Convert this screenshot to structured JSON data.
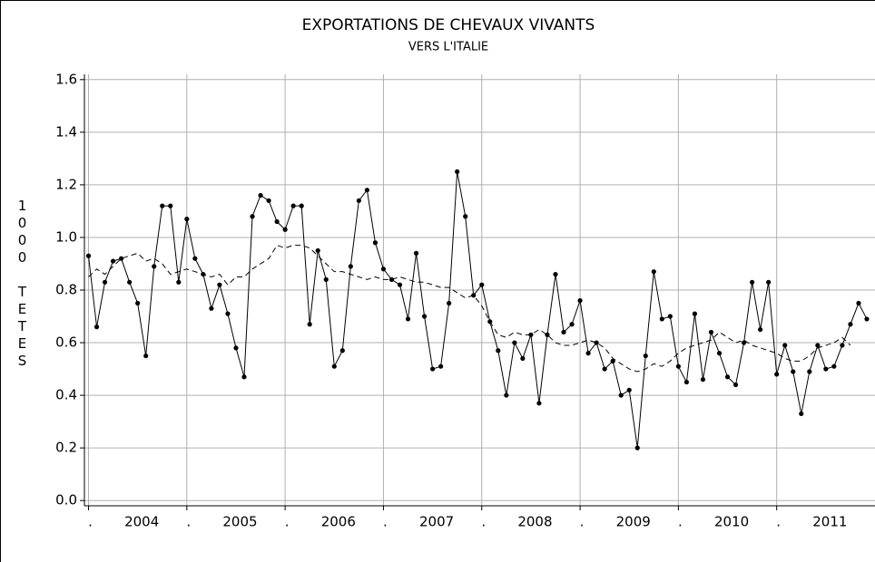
{
  "chart_data": {
    "type": "line",
    "title": "EXPORTATIONS DE CHEVAUX VIVANTS",
    "subtitle": "VERS L'ITALIE",
    "ylabel": "1000 TETES",
    "x": [
      0,
      1,
      2,
      3,
      4,
      5,
      6,
      7,
      8,
      9,
      10,
      11,
      12,
      13,
      14,
      15,
      16,
      17,
      18,
      19,
      20,
      21,
      22,
      23,
      24,
      25,
      26,
      27,
      28,
      29,
      30,
      31,
      32,
      33,
      34,
      35,
      36,
      37,
      38,
      39,
      40,
      41,
      42,
      43,
      44,
      45,
      46,
      47,
      48,
      49,
      50,
      51,
      52,
      53,
      54,
      55,
      56,
      57,
      58,
      59,
      60,
      61,
      62,
      63,
      64,
      65,
      66,
      67,
      68,
      69,
      70,
      71,
      72,
      73,
      74,
      75,
      76,
      77,
      78,
      79,
      80,
      81,
      82,
      83,
      84,
      85,
      86,
      87,
      88,
      89,
      90,
      91,
      92,
      93,
      94,
      95
    ],
    "series": [
      {
        "color": "#000000",
        "style": "solid",
        "markers": true,
        "values": [
          0.93,
          0.66,
          0.83,
          0.91,
          0.92,
          0.83,
          0.75,
          0.55,
          0.89,
          1.12,
          1.12,
          0.83,
          1.07,
          0.92,
          0.86,
          0.73,
          0.82,
          0.71,
          0.58,
          0.47,
          1.08,
          1.16,
          1.14,
          1.06,
          1.03,
          1.12,
          1.12,
          0.67,
          0.95,
          0.84,
          0.51,
          0.57,
          0.89,
          1.14,
          1.18,
          0.98,
          0.88,
          0.84,
          0.82,
          0.69,
          0.94,
          0.7,
          0.5,
          0.51,
          0.75,
          1.25,
          1.08,
          0.78,
          0.82,
          0.68,
          0.57,
          0.4,
          0.6,
          0.54,
          0.63,
          0.37,
          0.63,
          0.86,
          0.64,
          0.67,
          0.76,
          0.56,
          0.6,
          0.5,
          0.53,
          0.4,
          0.42,
          0.2,
          0.55,
          0.87,
          0.69,
          0.7,
          0.51,
          0.45,
          0.71,
          0.46,
          0.64,
          0.56,
          0.47,
          0.44,
          0.6,
          0.83,
          0.65,
          0.83,
          0.48,
          0.59,
          0.49,
          0.33,
          0.49,
          0.59,
          0.5,
          0.51,
          0.59,
          0.67,
          0.75,
          0.69
        ]
      },
      {
        "color": "#000000",
        "style": "dashed",
        "markers": false,
        "values": [
          0.85,
          0.88,
          0.86,
          0.89,
          0.92,
          0.93,
          0.94,
          0.91,
          0.92,
          0.9,
          0.86,
          0.87,
          0.88,
          0.87,
          0.86,
          0.85,
          0.86,
          0.82,
          0.85,
          0.85,
          0.88,
          0.9,
          0.92,
          0.97,
          0.96,
          0.97,
          0.97,
          0.96,
          0.93,
          0.9,
          0.87,
          0.87,
          0.86,
          0.85,
          0.84,
          0.85,
          0.84,
          0.84,
          0.85,
          0.84,
          0.83,
          0.83,
          0.82,
          0.81,
          0.81,
          0.79,
          0.77,
          0.78,
          0.74,
          0.68,
          0.63,
          0.62,
          0.64,
          0.63,
          0.63,
          0.65,
          0.63,
          0.6,
          0.59,
          0.59,
          0.6,
          0.61,
          0.6,
          0.58,
          0.54,
          0.52,
          0.5,
          0.49,
          0.5,
          0.52,
          0.51,
          0.53,
          0.56,
          0.58,
          0.59,
          0.6,
          0.61,
          0.64,
          0.62,
          0.6,
          0.61,
          0.59,
          0.58,
          0.57,
          0.56,
          0.54,
          0.53,
          0.53,
          0.55,
          0.58,
          0.59,
          0.6,
          0.62,
          0.59,
          null,
          null
        ]
      }
    ],
    "xlim": [
      -0.5,
      96
    ],
    "xticks": [
      {
        "value": 6.5,
        "label": "2004"
      },
      {
        "value": 18.5,
        "label": "2005"
      },
      {
        "value": 30.5,
        "label": "2006"
      },
      {
        "value": 42.5,
        "label": "2007"
      },
      {
        "value": 54.5,
        "label": "2008"
      },
      {
        "value": 66.5,
        "label": "2009"
      },
      {
        "value": 78.5,
        "label": "2010"
      },
      {
        "value": 90.5,
        "label": "2011"
      }
    ],
    "xgridticks": [
      {
        "value": 0,
        "label": "."
      },
      {
        "value": 12,
        "label": "."
      },
      {
        "value": 24,
        "label": "."
      },
      {
        "value": 36,
        "label": "."
      },
      {
        "value": 48,
        "label": "."
      },
      {
        "value": 60,
        "label": "."
      },
      {
        "value": 72,
        "label": "."
      },
      {
        "value": 84,
        "label": "."
      }
    ],
    "ylim": [
      -0.02,
      1.62
    ],
    "yticks": [
      {
        "value": 0,
        "label": "0.0"
      },
      0.2,
      0.4,
      0.6,
      0.8,
      {
        "value": 1,
        "label": "1.0"
      },
      1.2,
      1.4,
      1.6
    ],
    "grid": true
  }
}
